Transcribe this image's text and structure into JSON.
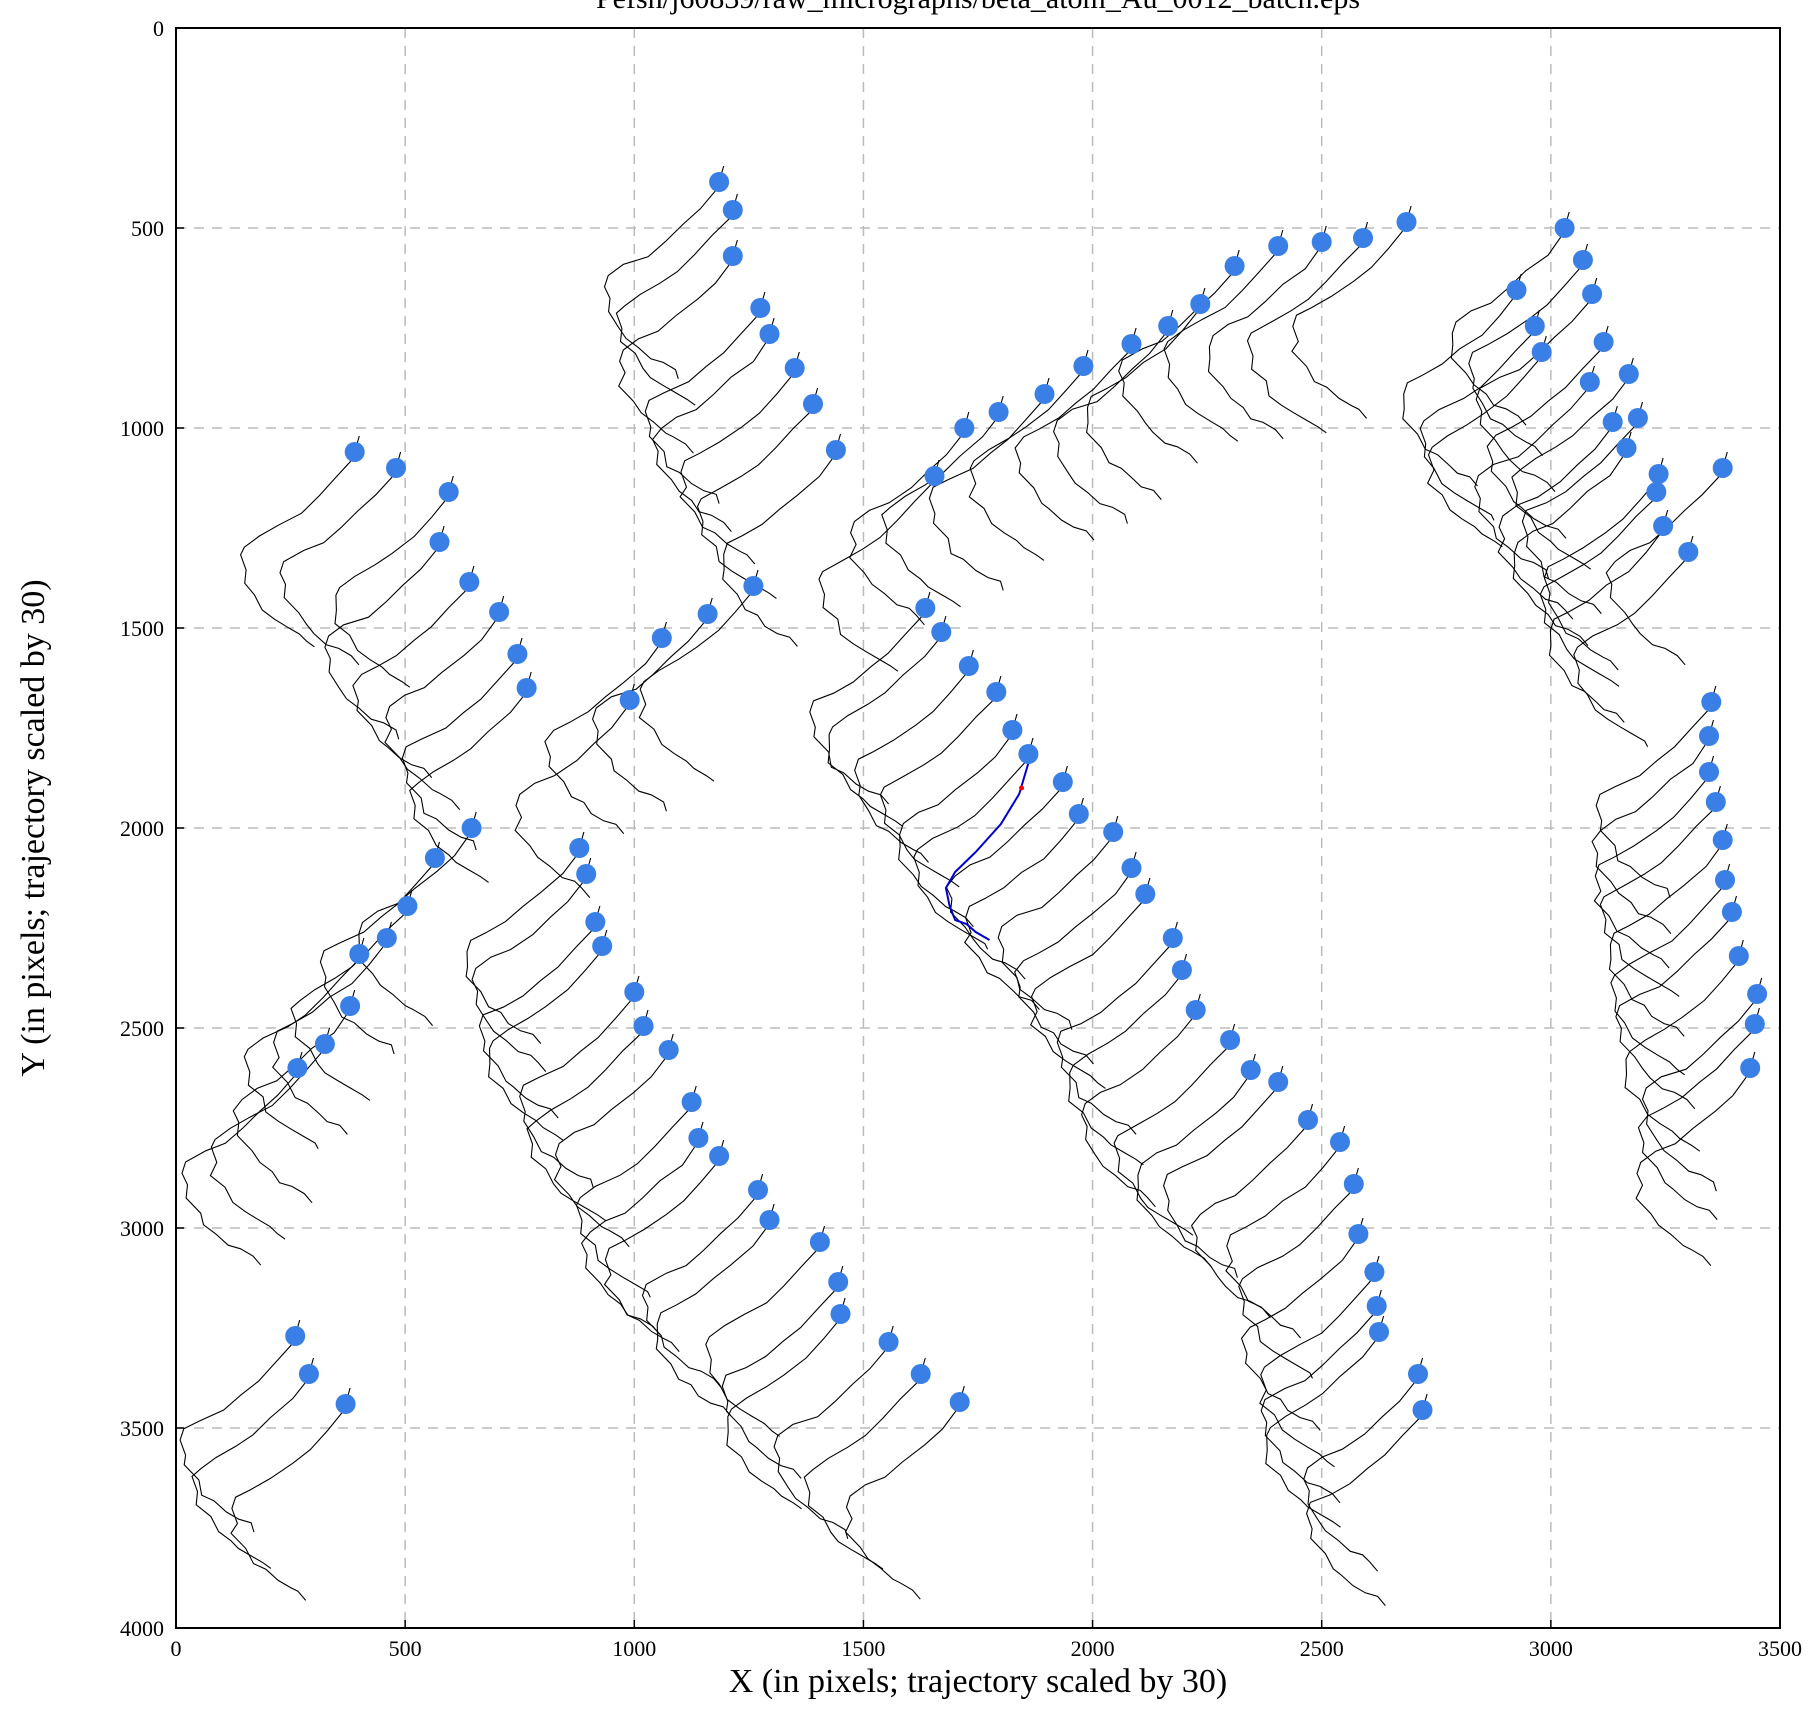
{
  "chart_data": {
    "type": "scatter",
    "title": "Pefsh/j60839/raw_micrographs/beta_atom_Au_0012_batch.eps",
    "xlabel": "X (in pixels; trajectory scaled by 30)",
    "ylabel": "Y (in pixels; trajectory scaled by 30)",
    "xlim": [
      0,
      3500
    ],
    "ylim": [
      0,
      4000
    ],
    "y_inverted": true,
    "grid": true,
    "grid_style": "dashed",
    "x_ticks": [
      0,
      500,
      1000,
      1500,
      2000,
      2500,
      3000,
      3500
    ],
    "y_ticks": [
      0,
      500,
      1000,
      1500,
      2000,
      2500,
      3000,
      3500,
      4000
    ],
    "colors": {
      "particle": "#3a7fe6",
      "trajectory": "#000000",
      "highlight_trajectory": "#0000cc",
      "highlight_start": "#ff0000",
      "grid": "#bbbbbb",
      "frame": "#000000"
    },
    "series": [
      {
        "name": "",
        "points": [
          [
            1185,
            385
          ],
          [
            1215,
            455
          ],
          [
            1215,
            570
          ],
          [
            1275,
            700
          ],
          [
            1295,
            765
          ],
          [
            1350,
            850
          ],
          [
            1390,
            940
          ],
          [
            1440,
            1055
          ],
          [
            390,
            1060
          ],
          [
            480,
            1100
          ],
          [
            595,
            1160
          ],
          [
            575,
            1285
          ],
          [
            640,
            1385
          ],
          [
            705,
            1460
          ],
          [
            745,
            1565
          ],
          [
            765,
            1650
          ],
          [
            2685,
            485
          ],
          [
            2590,
            525
          ],
          [
            2500,
            535
          ],
          [
            2405,
            545
          ],
          [
            2310,
            595
          ],
          [
            2235,
            690
          ],
          [
            2165,
            745
          ],
          [
            2085,
            790
          ],
          [
            1980,
            845
          ],
          [
            1895,
            915
          ],
          [
            1795,
            960
          ],
          [
            1720,
            1000
          ],
          [
            1655,
            1120
          ],
          [
            3030,
            500
          ],
          [
            3070,
            580
          ],
          [
            3090,
            665
          ],
          [
            2925,
            655
          ],
          [
            2965,
            745
          ],
          [
            3115,
            785
          ],
          [
            2980,
            810
          ],
          [
            3085,
            885
          ],
          [
            3170,
            865
          ],
          [
            3135,
            985
          ],
          [
            3190,
            975
          ],
          [
            3165,
            1050
          ],
          [
            3235,
            1115
          ],
          [
            3230,
            1160
          ],
          [
            3245,
            1245
          ],
          [
            3300,
            1310
          ],
          [
            3375,
            1100
          ],
          [
            1260,
            1395
          ],
          [
            1160,
            1465
          ],
          [
            1060,
            1525
          ],
          [
            990,
            1680
          ],
          [
            1635,
            1450
          ],
          [
            1670,
            1510
          ],
          [
            1730,
            1595
          ],
          [
            1790,
            1660
          ],
          [
            1825,
            1755
          ],
          [
            1860,
            1815
          ],
          [
            1935,
            1885
          ],
          [
            1970,
            1965
          ],
          [
            2045,
            2010
          ],
          [
            2085,
            2100
          ],
          [
            2115,
            2165
          ],
          [
            2175,
            2275
          ],
          [
            2195,
            2355
          ],
          [
            2225,
            2455
          ],
          [
            2300,
            2530
          ],
          [
            2345,
            2605
          ],
          [
            2405,
            2635
          ],
          [
            2470,
            2730
          ],
          [
            2540,
            2785
          ],
          [
            2570,
            2890
          ],
          [
            2580,
            3015
          ],
          [
            2615,
            3110
          ],
          [
            2620,
            3195
          ],
          [
            2625,
            3260
          ],
          [
            2710,
            3365
          ],
          [
            2720,
            3455
          ],
          [
            645,
            2000
          ],
          [
            565,
            2075
          ],
          [
            505,
            2195
          ],
          [
            460,
            2275
          ],
          [
            400,
            2315
          ],
          [
            380,
            2445
          ],
          [
            325,
            2540
          ],
          [
            265,
            2600
          ],
          [
            880,
            2050
          ],
          [
            895,
            2115
          ],
          [
            915,
            2235
          ],
          [
            930,
            2295
          ],
          [
            1000,
            2410
          ],
          [
            1020,
            2495
          ],
          [
            1075,
            2555
          ],
          [
            1125,
            2685
          ],
          [
            1140,
            2775
          ],
          [
            1185,
            2820
          ],
          [
            1270,
            2905
          ],
          [
            1295,
            2980
          ],
          [
            1405,
            3035
          ],
          [
            1445,
            3135
          ],
          [
            1450,
            3215
          ],
          [
            1555,
            3285
          ],
          [
            1625,
            3365
          ],
          [
            1710,
            3435
          ],
          [
            3350,
            1685
          ],
          [
            3345,
            1770
          ],
          [
            3345,
            1860
          ],
          [
            3360,
            1935
          ],
          [
            3375,
            2030
          ],
          [
            3380,
            2130
          ],
          [
            3395,
            2210
          ],
          [
            3410,
            2320
          ],
          [
            3450,
            2415
          ],
          [
            3445,
            2490
          ],
          [
            3435,
            2600
          ],
          [
            260,
            3270
          ],
          [
            290,
            3365
          ],
          [
            370,
            3440
          ]
        ]
      }
    ],
    "highlight_track": [
      [
        1862,
        1830
      ],
      [
        1840,
        1915
      ],
      [
        1800,
        1990
      ],
      [
        1745,
        2060
      ],
      [
        1700,
        2110
      ],
      [
        1680,
        2150
      ],
      [
        1688,
        2195
      ],
      [
        1700,
        2230
      ],
      [
        1725,
        2240
      ],
      [
        1745,
        2260
      ],
      [
        1775,
        2280
      ]
    ],
    "highlight_start_point": [
      1845,
      1900
    ],
    "trajectory_template": [
      [
        0,
        0
      ],
      [
        -8,
        22
      ],
      [
        -40,
        65
      ],
      [
        -80,
        110
      ],
      [
        -120,
        150
      ],
      [
        -160,
        185
      ],
      [
        -205,
        210
      ],
      [
        -240,
        235
      ],
      [
        -250,
        260
      ],
      [
        -240,
        295
      ],
      [
        -245,
        325
      ],
      [
        -215,
        360
      ],
      [
        -200,
        395
      ],
      [
        -175,
        415
      ],
      [
        -150,
        440
      ],
      [
        -125,
        455
      ],
      [
        -100,
        470
      ],
      [
        -85,
        490
      ]
    ],
    "trajectory_scale": 30
  }
}
